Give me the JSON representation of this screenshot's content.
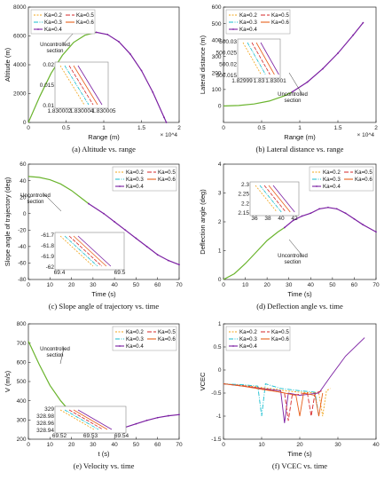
{
  "colors": {
    "uncontrolled": "#6ab42d",
    "k02": "#f2a51a",
    "k03": "#17becf",
    "k04": "#7b1fa2",
    "k05": "#d62728",
    "k06": "#e8601c",
    "axis": "#222222",
    "box": "#888888"
  },
  "legend_entries": [
    {
      "label": "K_a=0.2",
      "color_key": "k02",
      "dash": "2,1.5"
    },
    {
      "label": "K_a=0.5",
      "color_key": "k05",
      "dash": "5,2"
    },
    {
      "label": "K_a=0.3",
      "color_key": "k03",
      "dash": "5,1.5,1,1.5"
    },
    {
      "label": "K_a=0.6",
      "color_key": "k06",
      "dash": ""
    },
    {
      "label": "K_a=0.4",
      "color_key": "k04",
      "dash": "",
      "marker": true
    }
  ],
  "chart_data": [
    {
      "id": "a",
      "type": "line",
      "caption": "(a) Altitude vs. range",
      "xlabel": "Range (m)",
      "ylabel": "Altitude (m)",
      "xlim": [
        0,
        20000
      ],
      "ylim": [
        0,
        8000
      ],
      "xticks": [
        0,
        5000,
        10000,
        15000,
        20000
      ],
      "xtick_labels": [
        "0",
        "0.5",
        "1",
        "1.5",
        "2"
      ],
      "x_multiplier": "× 10^4",
      "yticks": [
        0,
        2000,
        4000,
        6000,
        8000
      ],
      "ytick_labels": [
        "0",
        "2000",
        "4000",
        "6000",
        "8000"
      ],
      "annotation": "Uncontrolled section",
      "legend": "top-left",
      "series": [
        {
          "name": "Uncontrolled section",
          "x": [
            0,
            1500,
            3000,
            4500,
            6000,
            7500,
            9000
          ],
          "y": [
            0,
            1800,
            3400,
            4650,
            5550,
            6050,
            6250
          ]
        },
        {
          "name": "K_a=0.4",
          "x": [
            9000,
            10500,
            12000,
            13500,
            15000,
            16500,
            18000,
            18300
          ],
          "y": [
            6250,
            6100,
            5600,
            4750,
            3600,
            2100,
            350,
            0
          ]
        }
      ],
      "inset": {
        "xtick_labels": [
          "1.830002",
          "1.830004",
          "1.830005"
        ],
        "ytick_labels": [
          "0.02",
          "0.015",
          "0.01"
        ]
      }
    },
    {
      "id": "b",
      "type": "line",
      "caption": "(b) Lateral distance vs. range",
      "xlabel": "Range (m)",
      "ylabel": "Lateral distance (m)",
      "xlim": [
        0,
        20000
      ],
      "ylim": [
        -100,
        600
      ],
      "xticks": [
        0,
        5000,
        10000,
        15000,
        20000
      ],
      "xtick_labels": [
        "0",
        "0.5",
        "1",
        "1.5",
        "2"
      ],
      "x_multiplier": "× 10^4",
      "yticks": [
        0,
        100,
        200,
        300,
        400,
        500,
        600
      ],
      "ytick_labels": [
        "0",
        "100",
        "200",
        "300",
        "400",
        "500",
        "600"
      ],
      "annotation": "Uncontrolled section",
      "legend": "top-left",
      "series": [
        {
          "name": "Uncontrolled section",
          "x": [
            0,
            2000,
            4000,
            6000,
            8000,
            9000
          ],
          "y": [
            0,
            3,
            12,
            30,
            62,
            85
          ]
        },
        {
          "name": "K_a=0.4",
          "x": [
            9000,
            11000,
            13000,
            15000,
            17000,
            18300
          ],
          "y": [
            85,
            145,
            225,
            320,
            430,
            505
          ]
        }
      ],
      "inset": {
        "xtick_labels": [
          "1.82999",
          "1.83",
          "1.83001"
        ],
        "ytick_labels": [
          "500.03",
          "500.025",
          "500.02",
          "500.015"
        ]
      }
    },
    {
      "id": "c",
      "type": "line",
      "caption": "(c) Slope angle of trajectory vs. time",
      "xlabel": "Time (s)",
      "ylabel": "Slope angle of trajectory (deg)",
      "xlim": [
        0,
        70
      ],
      "ylim": [
        -80,
        60
      ],
      "xticks": [
        0,
        10,
        20,
        30,
        40,
        50,
        60,
        70
      ],
      "xtick_labels": [
        "0",
        "10",
        "20",
        "30",
        "40",
        "50",
        "60",
        "70"
      ],
      "yticks": [
        -80,
        -60,
        -40,
        -20,
        0,
        20,
        40,
        60
      ],
      "ytick_labels": [
        "-80",
        "-60",
        "-40",
        "-20",
        "0",
        "20",
        "40",
        "60"
      ],
      "annotation": "Uncontrolled section",
      "legend": "top-right",
      "series": [
        {
          "name": "Uncontrolled section",
          "x": [
            0,
            5,
            10,
            15,
            20,
            25,
            28
          ],
          "y": [
            45,
            44,
            41,
            36,
            28,
            18,
            12
          ]
        },
        {
          "name": "K_a=0.4",
          "x": [
            28,
            35,
            40,
            45,
            50,
            55,
            60,
            65,
            70
          ],
          "y": [
            12,
            0,
            -10,
            -20,
            -30,
            -40,
            -50,
            -57,
            -62
          ]
        }
      ],
      "inset": {
        "xtick_labels": [
          "69.4",
          "69.5"
        ],
        "ytick_labels": [
          "-61.7",
          "-61.8",
          "-61.9",
          "-62"
        ]
      }
    },
    {
      "id": "d",
      "type": "line",
      "caption": "(d) Deflection angle vs. time",
      "xlabel": "Time (s)",
      "ylabel": "Deflection angle (deg)",
      "xlim": [
        0,
        70
      ],
      "ylim": [
        0,
        4
      ],
      "xticks": [
        0,
        10,
        20,
        30,
        40,
        50,
        60,
        70
      ],
      "xtick_labels": [
        "0",
        "10",
        "20",
        "30",
        "40",
        "50",
        "60",
        "70"
      ],
      "yticks": [
        0,
        1,
        2,
        3,
        4
      ],
      "ytick_labels": [
        "0",
        "1",
        "2",
        "3",
        "4"
      ],
      "annotation": "Uncontrolled section",
      "legend": "top-right",
      "series": [
        {
          "name": "Uncontrolled section",
          "x": [
            0,
            5,
            10,
            15,
            20,
            25,
            28
          ],
          "y": [
            0,
            0.2,
            0.55,
            0.95,
            1.35,
            1.65,
            1.8
          ]
        },
        {
          "name": "K_a=0.4",
          "x": [
            28,
            32,
            36,
            40,
            44,
            48,
            52,
            56,
            60,
            64,
            70
          ],
          "y": [
            1.8,
            2.05,
            2.2,
            2.3,
            2.45,
            2.5,
            2.45,
            2.3,
            2.1,
            1.9,
            1.65
          ]
        }
      ],
      "inset": {
        "xtick_labels": [
          "36",
          "38",
          "40",
          "42"
        ],
        "ytick_labels": [
          "2.3",
          "2.25",
          "2.2",
          "2.15"
        ]
      }
    },
    {
      "id": "e",
      "type": "line",
      "caption": "(e) Velocity vs. time",
      "xlabel": "t (s)",
      "ylabel": "V (m/s)",
      "xlim": [
        0,
        70
      ],
      "ylim": [
        200,
        800
      ],
      "xticks": [
        0,
        10,
        20,
        30,
        40,
        50,
        60,
        70
      ],
      "xtick_labels": [
        "0",
        "10",
        "20",
        "30",
        "40",
        "50",
        "60",
        "70"
      ],
      "yticks": [
        200,
        300,
        400,
        500,
        600,
        700,
        800
      ],
      "ytick_labels": [
        "200",
        "300",
        "400",
        "500",
        "600",
        "700",
        "800"
      ],
      "annotation": "Uncontrolled section",
      "legend": "top-right",
      "series": [
        {
          "name": "Uncontrolled section",
          "x": [
            0,
            5,
            10,
            15,
            20,
            25,
            28
          ],
          "y": [
            710,
            590,
            480,
            400,
            335,
            290,
            265
          ]
        },
        {
          "name": "K_a=0.4",
          "x": [
            28,
            35,
            40,
            45,
            50,
            55,
            60,
            65,
            70
          ],
          "y": [
            265,
            248,
            250,
            262,
            280,
            298,
            312,
            322,
            328
          ]
        }
      ],
      "inset": {
        "xtick_labels": [
          "69.52",
          "69.53",
          "69.54"
        ],
        "ytick_labels": [
          "329",
          "328.98",
          "328.96",
          "328.94"
        ]
      }
    },
    {
      "id": "f",
      "type": "line",
      "caption": "(f) VCEC vs. time",
      "xlabel": "Time (s)",
      "ylabel": "VCEC",
      "xlim": [
        0,
        40
      ],
      "ylim": [
        -1.5,
        1
      ],
      "xticks": [
        0,
        10,
        20,
        30,
        40
      ],
      "xtick_labels": [
        "0",
        "10",
        "20",
        "30",
        "40"
      ],
      "yticks": [
        -1.5,
        -1,
        -0.5,
        0,
        0.5,
        1
      ],
      "ytick_labels": [
        "-1.5",
        "-1",
        "-0.5",
        "0",
        "0.5",
        "1"
      ],
      "legend": "top-left",
      "series": [
        {
          "name": "K_a=0.2",
          "x": [
            0,
            5,
            10,
            14,
            16,
            20,
            25,
            26,
            27,
            28
          ],
          "y": [
            -0.3,
            -0.33,
            -0.38,
            -0.42,
            -0.45,
            -0.48,
            -0.5,
            -1.0,
            -0.45,
            -0.4
          ]
        },
        {
          "name": "K_a=0.3",
          "x": [
            0,
            5,
            9,
            10,
            11,
            15,
            20,
            24,
            25
          ],
          "y": [
            -0.3,
            -0.32,
            -0.35,
            -1.0,
            -0.3,
            -0.4,
            -0.45,
            -0.48,
            -1.0
          ]
        },
        {
          "name": "K_a=0.4",
          "x": [
            0,
            5,
            10,
            15,
            16,
            17,
            20,
            25,
            28,
            32,
            37
          ],
          "y": [
            -0.3,
            -0.35,
            -0.4,
            -0.45,
            -1.15,
            -0.5,
            -0.55,
            -0.5,
            -0.15,
            0.3,
            0.7
          ]
        },
        {
          "name": "K_a=0.5",
          "x": [
            0,
            5,
            10,
            16,
            17,
            18,
            22,
            23,
            24,
            26
          ],
          "y": [
            -0.3,
            -0.34,
            -0.4,
            -0.5,
            -1.1,
            -0.55,
            -0.5,
            -1.0,
            -0.5,
            -0.45
          ]
        },
        {
          "name": "K_a=0.6",
          "x": [
            0,
            5,
            10,
            15,
            19,
            20,
            21,
            24,
            25,
            26
          ],
          "y": [
            -0.3,
            -0.35,
            -0.42,
            -0.48,
            -0.55,
            -1.0,
            -0.5,
            -0.55,
            -1.0,
            -0.5
          ]
        }
      ]
    }
  ]
}
